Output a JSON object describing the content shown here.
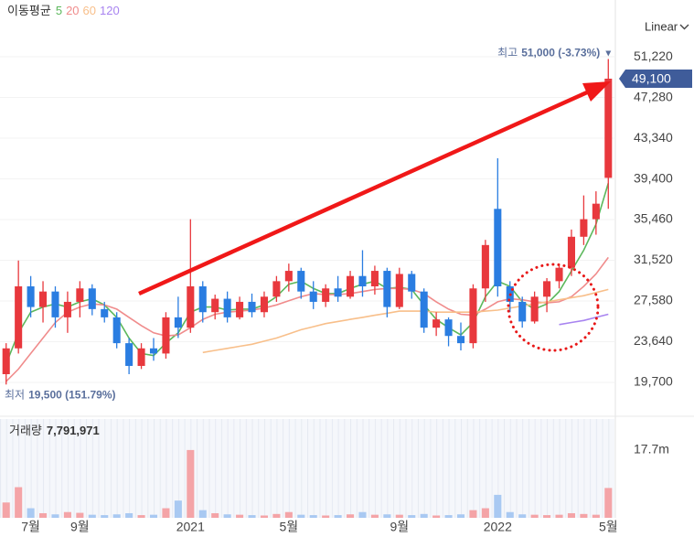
{
  "chart_data": [
    {
      "type": "candlestick",
      "ma_title": "이동평균",
      "scale_label": "Linear",
      "categories": [
        null,
        null,
        "7월",
        null,
        null,
        null,
        "9월",
        null,
        null,
        null,
        null,
        null,
        null,
        null,
        null,
        "2021",
        null,
        null,
        null,
        null,
        null,
        null,
        null,
        "5월",
        null,
        null,
        null,
        null,
        null,
        null,
        null,
        null,
        "9월",
        null,
        null,
        null,
        null,
        null,
        null,
        null,
        "2022",
        null,
        null,
        null,
        null,
        null,
        null,
        null,
        null,
        "5월"
      ],
      "open": [
        20500,
        23000,
        29000,
        27000,
        28500,
        26000,
        27500,
        28800,
        26800,
        26000,
        23500,
        21300,
        23000,
        22500,
        26000,
        25000,
        29000,
        26500,
        27800,
        26000,
        27500,
        26500,
        28000,
        29500,
        30500,
        28500,
        27500,
        28800,
        28000,
        30000,
        29000,
        30500,
        27000,
        30200,
        28500,
        25000,
        25800,
        24200,
        23500,
        28800,
        36500,
        29000,
        27500,
        25600,
        28000,
        29500,
        30800,
        33800,
        35500,
        39500
      ],
      "high": [
        23500,
        31500,
        30000,
        29500,
        29000,
        28500,
        29500,
        29200,
        27500,
        26500,
        24000,
        23500,
        24000,
        26500,
        28000,
        35500,
        29500,
        28200,
        28500,
        28000,
        28300,
        28500,
        30000,
        31200,
        30800,
        29500,
        29200,
        30000,
        30500,
        32500,
        31000,
        30800,
        30800,
        30500,
        28800,
        26500,
        26000,
        25500,
        29200,
        33500,
        41400,
        29500,
        28000,
        28500,
        29800,
        31200,
        34500,
        37800,
        38200,
        51000
      ],
      "low": [
        19500,
        22500,
        26000,
        25500,
        25000,
        24500,
        26000,
        26200,
        25500,
        23000,
        20500,
        21000,
        21800,
        22000,
        24000,
        24500,
        25500,
        25800,
        25500,
        25800,
        26000,
        26000,
        27500,
        28500,
        27800,
        26800,
        27000,
        27500,
        27800,
        28000,
        28200,
        26000,
        26800,
        27800,
        24500,
        24200,
        23200,
        22800,
        23000,
        27500,
        28000,
        26500,
        25000,
        25400,
        26500,
        28800,
        30000,
        33000,
        34000,
        36500
      ],
      "close": [
        23000,
        29000,
        27000,
        28500,
        26000,
        27500,
        28800,
        26800,
        26000,
        23500,
        21300,
        23000,
        22500,
        26000,
        25000,
        29000,
        26500,
        27800,
        26000,
        27500,
        26500,
        28000,
        29500,
        30500,
        28500,
        27500,
        28800,
        28000,
        30000,
        29000,
        30500,
        27000,
        30200,
        28500,
        25000,
        25800,
        24200,
        23500,
        28800,
        33000,
        29000,
        27500,
        25600,
        28000,
        29500,
        30800,
        33800,
        35500,
        37000,
        49100
      ],
      "up_color": "#e8383d",
      "down_color": "#2a7de1",
      "moving_averages": [
        {
          "name": "5",
          "color": "#5cb85c",
          "values": [
            21500,
            24500,
            26500,
            27000,
            27300,
            27000,
            27500,
            27800,
            27200,
            26000,
            24000,
            22500,
            22300,
            23500,
            24500,
            26500,
            27000,
            27000,
            26700,
            26800,
            26800,
            27200,
            28000,
            29200,
            29500,
            28800,
            28300,
            28300,
            28800,
            29200,
            29500,
            28800,
            28900,
            28700,
            27200,
            25800,
            25000,
            24300,
            25500,
            28000,
            29500,
            29000,
            27500,
            26800,
            27300,
            28500,
            30500,
            32500,
            35000,
            39000
          ]
        },
        {
          "name": "20",
          "color": "#f08c8c",
          "values": [
            19800,
            21000,
            22500,
            24000,
            25500,
            26500,
            27000,
            27300,
            27200,
            26800,
            26000,
            25200,
            24500,
            24200,
            24300,
            25000,
            25800,
            26300,
            26500,
            26600,
            26700,
            26900,
            27200,
            27600,
            28000,
            28300,
            28200,
            28200,
            28300,
            28500,
            28700,
            28800,
            28800,
            28700,
            28300,
            27500,
            26800,
            26300,
            26200,
            26800,
            27500,
            27800,
            27700,
            27500,
            27400,
            27500,
            28000,
            29000,
            30200,
            31800
          ]
        },
        {
          "name": "60",
          "color": "#f8bf8a",
          "values": [
            null,
            null,
            null,
            null,
            null,
            null,
            null,
            null,
            null,
            null,
            null,
            null,
            null,
            null,
            null,
            null,
            22600,
            22800,
            23000,
            23200,
            23400,
            23700,
            24000,
            24400,
            24800,
            25100,
            25400,
            25600,
            25800,
            26000,
            26200,
            26400,
            26600,
            26600,
            26600,
            26500,
            26500,
            26500,
            26500,
            26600,
            26700,
            26900,
            27100,
            27300,
            27500,
            27700,
            27900,
            28100,
            28400,
            28700
          ]
        },
        {
          "name": "120",
          "color": "#a884f0",
          "values": [
            null,
            null,
            null,
            null,
            null,
            null,
            null,
            null,
            null,
            null,
            null,
            null,
            null,
            null,
            null,
            null,
            null,
            null,
            null,
            null,
            null,
            null,
            null,
            null,
            null,
            null,
            null,
            null,
            null,
            null,
            null,
            null,
            null,
            null,
            null,
            null,
            null,
            null,
            null,
            null,
            null,
            null,
            null,
            null,
            null,
            25300,
            25500,
            25700,
            26000,
            26300
          ]
        }
      ],
      "ylim": [
        16870,
        52730
      ],
      "yticks": [
        {
          "value": 19700,
          "label": "19,700"
        },
        {
          "value": 23640,
          "label": "23,640"
        },
        {
          "value": 27580,
          "label": "27,580"
        },
        {
          "value": 31520,
          "label": "31,520"
        },
        {
          "value": 35460,
          "label": "35,460"
        },
        {
          "value": 39400,
          "label": "39,400"
        },
        {
          "value": 43340,
          "label": "43,340"
        },
        {
          "value": 47280,
          "label": "47,280"
        },
        {
          "value": 51220,
          "label": "51,220"
        }
      ],
      "grid": true,
      "high_label": {
        "prefix": "최고",
        "text": "51,000 (-3.73%)"
      },
      "low_label": {
        "prefix": "최저",
        "text": "19,500 (151.79%)"
      },
      "last_label": "49,100"
    },
    {
      "type": "bar",
      "title": "거래량",
      "value_label": "7,791,971",
      "values": [
        4000000,
        8000000,
        2500000,
        1200000,
        900000,
        1500000,
        1300000,
        800000,
        700000,
        900000,
        1200000,
        700000,
        800000,
        2500000,
        4500000,
        17700000,
        2000000,
        1200000,
        900000,
        800000,
        700000,
        600000,
        1000000,
        1500000,
        800000,
        700000,
        600000,
        700000,
        900000,
        1500000,
        800000,
        900000,
        800000,
        700000,
        1000000,
        600000,
        700000,
        900000,
        2000000,
        2500000,
        6000000,
        1500000,
        900000,
        800000,
        700000,
        800000,
        1200000,
        1000000,
        800000,
        7791971
      ],
      "up_color": "#f4a4a7",
      "down_color": "#a9c9f2",
      "ylim": [
        0,
        25800000
      ],
      "yticks": [
        {
          "value": 17700000,
          "label": "17.7m"
        }
      ]
    }
  ]
}
